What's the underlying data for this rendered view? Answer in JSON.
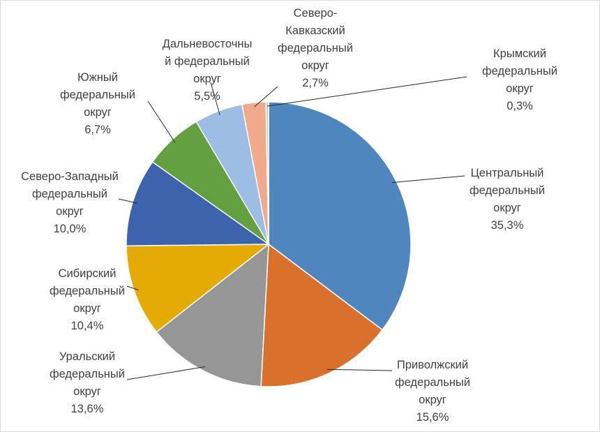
{
  "chart_data": {
    "type": "pie",
    "title": "",
    "slices": [
      {
        "name": "Центральный федеральный округ",
        "label_lines": [
          "Центральный",
          "федеральный",
          "округ"
        ],
        "value": 35.3,
        "value_label": "35,3%",
        "color": "#4f86be"
      },
      {
        "name": "Приволжский федеральный округ",
        "label_lines": [
          "Приволжский",
          "федеральный",
          "округ"
        ],
        "value": 15.6,
        "value_label": "15,6%",
        "color": "#d9702b"
      },
      {
        "name": "Уральский федеральный округ",
        "label_lines": [
          "Уральский",
          "федеральный",
          "округ"
        ],
        "value": 13.6,
        "value_label": "13,6%",
        "color": "#969696"
      },
      {
        "name": "Сибирский федеральный округ",
        "label_lines": [
          "Сибирский",
          "федеральный",
          "округ"
        ],
        "value": 10.4,
        "value_label": "10,4%",
        "color": "#e3ab04"
      },
      {
        "name": "Северо-Западный федеральный округ",
        "label_lines": [
          "Северо-Западный",
          "федеральный",
          "округ"
        ],
        "value": 10.0,
        "value_label": "10,0%",
        "color": "#3e63ad"
      },
      {
        "name": "Южный федеральный округ",
        "label_lines": [
          "Южный",
          "федеральный",
          "округ"
        ],
        "value": 6.7,
        "value_label": "6,7%",
        "color": "#62a040"
      },
      {
        "name": "Дальневосточный федеральный округ",
        "label_lines": [
          "Дальневосточны",
          "й федеральный",
          "округ"
        ],
        "value": 5.5,
        "value_label": "5,5%",
        "color": "#9dbde4"
      },
      {
        "name": "Северо-Кавказский федеральный округ",
        "label_lines": [
          "Северо-",
          "Кавказский",
          "федеральный",
          "округ"
        ],
        "value": 2.7,
        "value_label": "2,7%",
        "color": "#f0a98a"
      },
      {
        "name": "Крымский федеральный округ",
        "label_lines": [
          "Крымский",
          "федеральный",
          "округ"
        ],
        "value": 0.3,
        "value_label": "0,3%",
        "color": "#c9c9c9"
      }
    ],
    "legend": "none"
  }
}
